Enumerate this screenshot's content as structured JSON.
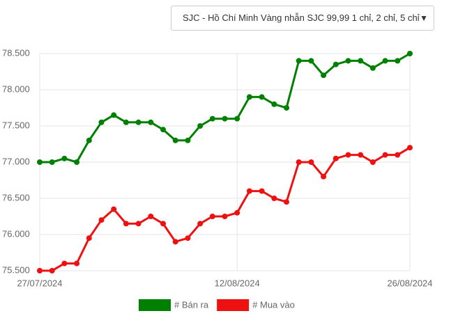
{
  "dropdown": {
    "selected": "SJC - Hồ Chí Minh Vàng nhẫn SJC 99,99 1 chỉ, 2 chỉ, 5 chỉ"
  },
  "chart_data": {
    "type": "line",
    "categories": [
      "27/07/2024",
      null,
      null,
      null,
      null,
      null,
      null,
      null,
      null,
      null,
      null,
      null,
      null,
      null,
      null,
      null,
      "12/08/2024",
      null,
      null,
      null,
      null,
      null,
      null,
      null,
      null,
      null,
      null,
      null,
      null,
      null,
      "26/08/2024"
    ],
    "series": [
      {
        "name": "# Bán ra",
        "color": "#008000",
        "values": [
          77000,
          77000,
          77050,
          77000,
          77300,
          77550,
          77650,
          77550,
          77550,
          77550,
          77450,
          77300,
          77300,
          77500,
          77600,
          77600,
          77600,
          77900,
          77900,
          77800,
          77750,
          78400,
          78400,
          78200,
          78350,
          78400,
          78400,
          78300,
          78400,
          78400,
          78500
        ]
      },
      {
        "name": "# Mua vào",
        "color": "#ee1111",
        "values": [
          75500,
          75500,
          75600,
          75600,
          75950,
          76200,
          76350,
          76150,
          76150,
          76250,
          76150,
          75900,
          75950,
          76150,
          76250,
          76250,
          76300,
          76600,
          76600,
          76500,
          76450,
          77000,
          77000,
          76800,
          77050,
          77100,
          77100,
          77000,
          77100,
          77100,
          77200
        ]
      }
    ],
    "ylim": [
      75500,
      78500
    ],
    "yticks": [
      {
        "value": 75500,
        "label": "75.500"
      },
      {
        "value": 76000,
        "label": "76.000"
      },
      {
        "value": 76500,
        "label": "76.500"
      },
      {
        "value": 77000,
        "label": "77.000"
      },
      {
        "value": 77500,
        "label": "77.500"
      },
      {
        "value": 78000,
        "label": "78.000"
      },
      {
        "value": 78500,
        "label": "78.500"
      }
    ],
    "grid": true
  }
}
